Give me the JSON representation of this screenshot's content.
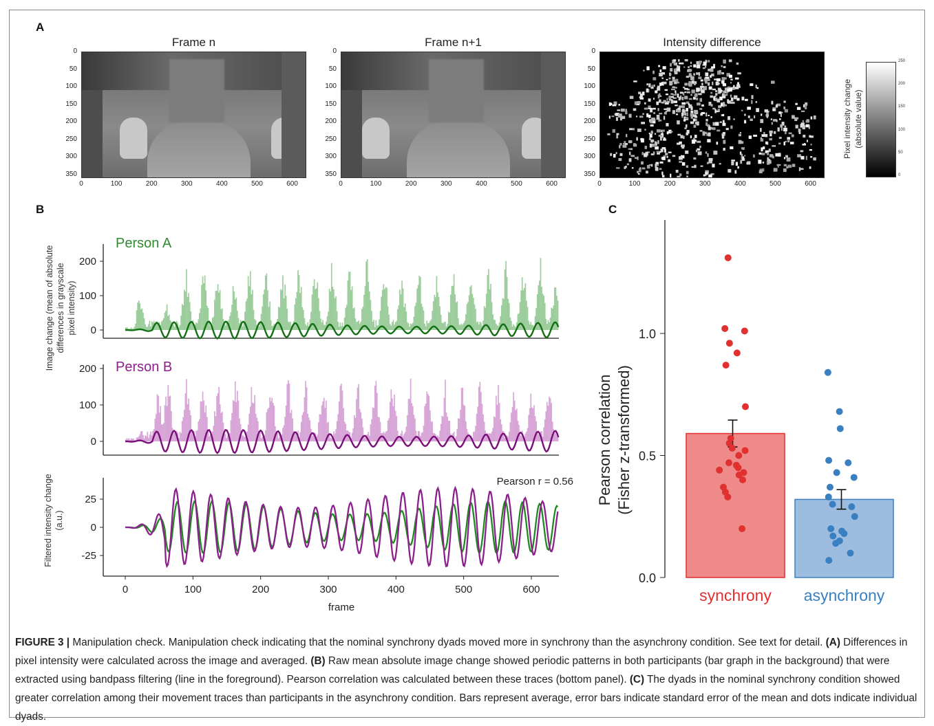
{
  "figure": {
    "panel_a_letter": "A",
    "panel_b_letter": "B",
    "panel_c_letter": "C"
  },
  "panel_a": {
    "images": [
      {
        "title": "Frame n",
        "kind": "frame"
      },
      {
        "title": "Frame n+1",
        "kind": "frame"
      },
      {
        "title": "Intensity difference",
        "kind": "difference"
      }
    ],
    "y_ticks": [
      "0",
      "50",
      "100",
      "150",
      "200",
      "250",
      "300",
      "350"
    ],
    "x_ticks": [
      "0",
      "100",
      "200",
      "300",
      "400",
      "500",
      "600"
    ],
    "colorbar": {
      "label_line1": "Pixel intensity change",
      "label_line2": "(absolute value)",
      "ticks": [
        "250",
        "200",
        "150",
        "100",
        "50",
        "0"
      ]
    }
  },
  "panel_b": {
    "ylabel_top_line1": "Image change (mean of absolute",
    "ylabel_top_line2": "differences in grayscale",
    "ylabel_top_line3": "pixel intensity)",
    "ylabel_bottom_line1": "Filtered intensity change",
    "ylabel_bottom_line2": "(a.u.)",
    "xlabel": "frame",
    "person_a_label": "Person A",
    "person_b_label": "Person B",
    "pearson_label": "Pearson r = 0.56",
    "person_a_color": "#2e8b2e",
    "person_b_color": "#8b1f8b"
  },
  "chart_data": [
    {
      "type": "area",
      "title": "Person A",
      "xlabel": "",
      "ylabel": "Image change (mean of absolute differences in grayscale pixel intensity)",
      "xlim": [
        -30,
        660
      ],
      "ylim": [
        -20,
        250
      ],
      "y_ticks": [
        0,
        100,
        200
      ],
      "x_ticks": [
        0,
        100,
        200,
        300,
        400,
        500,
        600
      ],
      "peak_frames": [
        20,
        60,
        89,
        115,
        136,
        160,
        183,
        207,
        232,
        256,
        280,
        305,
        331,
        356,
        382,
        408,
        433,
        459,
        484,
        510,
        536,
        561,
        587,
        613,
        634
      ],
      "peak_values": [
        140,
        85,
        210,
        195,
        185,
        170,
        205,
        200,
        195,
        230,
        215,
        220,
        210,
        225,
        200,
        175,
        210,
        180,
        200,
        205,
        210,
        215,
        215,
        225,
        160
      ],
      "filtered_amplitude": 25
    },
    {
      "type": "area",
      "title": "Person B",
      "xlabel": "",
      "ylabel": "",
      "xlim": [
        -30,
        660
      ],
      "ylim": [
        -20,
        220
      ],
      "y_ticks": [
        0,
        100,
        200
      ],
      "x_ticks": [
        0,
        100,
        200,
        300,
        400,
        500,
        600
      ],
      "peak_frames": [
        48,
        62,
        90,
        114,
        137,
        162,
        188,
        214,
        240,
        266,
        292,
        318,
        343,
        369,
        394,
        421,
        446,
        472,
        497,
        523,
        549,
        574,
        600,
        625
      ],
      "peak_values": [
        160,
        200,
        185,
        190,
        200,
        200,
        200,
        205,
        195,
        190,
        200,
        185,
        190,
        190,
        180,
        180,
        175,
        170,
        170,
        175,
        180,
        170,
        160,
        175
      ],
      "filtered_amplitude": 32
    },
    {
      "type": "line",
      "title": "",
      "xlabel": "frame",
      "ylabel": "Filtered intensity change (a.u.)",
      "xlim": [
        -30,
        660
      ],
      "ylim": [
        -42,
        42
      ],
      "y_ticks": [
        25,
        0,
        -25
      ],
      "x_ticks": [
        0,
        100,
        200,
        300,
        400,
        500,
        600
      ],
      "annotation": "Pearson r = 0.56",
      "series": [
        {
          "name": "",
          "color": "#1e8a1e",
          "amplitude": 23,
          "period_frames": 25.5
        },
        {
          "name": "",
          "color": "#8b1f8b",
          "amplitude": 35,
          "period_frames": 25.8
        }
      ]
    },
    {
      "type": "bar",
      "title": "",
      "xlabel": "",
      "ylabel": "Pearson correlation (Fisher z-transformed)",
      "ylim": [
        0,
        1.35
      ],
      "y_ticks": [
        0.0,
        0.5,
        1.0
      ],
      "y_tick_labels": [
        "0.0",
        "0.5",
        "1.0"
      ],
      "categories": [
        "synchrony",
        "asynchrony"
      ],
      "values": [
        0.59,
        0.32
      ],
      "errors": [
        0.055,
        0.04
      ],
      "colors": [
        "#e03030",
        "#3a7fc0"
      ],
      "points": [
        [
          1.31,
          1.02,
          1.01,
          0.96,
          0.92,
          0.87,
          0.7,
          0.57,
          0.55,
          0.53,
          0.52,
          0.5,
          0.47,
          0.46,
          0.45,
          0.44,
          0.43,
          0.42,
          0.4,
          0.37,
          0.35,
          0.33,
          0.2
        ],
        [
          0.84,
          0.68,
          0.61,
          0.48,
          0.47,
          0.43,
          0.41,
          0.37,
          0.33,
          0.3,
          0.29,
          0.25,
          0.2,
          0.19,
          0.18,
          0.17,
          0.15,
          0.14,
          0.1,
          0.07
        ]
      ]
    }
  ],
  "caption": {
    "fig_label": "FIGURE 3 |",
    "text1": " Manipulation check. Manipulation check indicating that the nominal synchrony dyads moved more in synchrony than the asynchrony condition. See text for detail. ",
    "a_label": "(A)",
    "text2": " Differences in pixel intensity were calculated across the image and averaged. ",
    "b_label": "(B)",
    "text3": " Raw mean absolute image change showed periodic patterns in both participants (bar graph in the background) that were extracted using bandpass filtering (line in the foreground). Pearson correlation was calculated between these traces (bottom panel). ",
    "c_label": "(C)",
    "text4": " The dyads in the nominal synchrony condition showed greater correlation among their movement traces than participants in the asynchrony condition. Bars represent average, error bars indicate standard error of the mean and dots indicate individual dyads."
  }
}
